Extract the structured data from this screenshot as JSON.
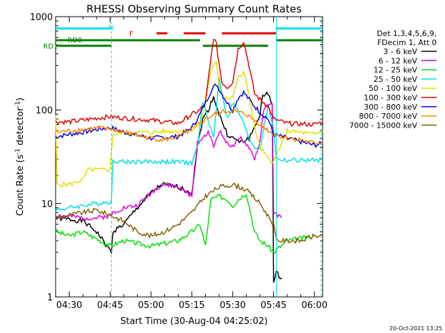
{
  "chart_data": {
    "type": "line",
    "title": "RHESSI Observing Summary Count Rates",
    "xlabel": "Start Time (30-Aug-04 04:25:02)",
    "ylabel_main": "Count Rate (s",
    "ylabel_sup1": "-1",
    "ylabel_mid": " detector",
    "ylabel_sup2": "-1",
    "ylabel_end": ")",
    "y_scale": "log",
    "ylim": [
      1,
      1000
    ],
    "xlim_minutes": [
      265,
      363
    ],
    "x_ticks": [
      {
        "label": "04:30",
        "minute": 270
      },
      {
        "label": "04:45",
        "minute": 285
      },
      {
        "label": "05:00",
        "minute": 300
      },
      {
        "label": "05:15",
        "minute": 315
      },
      {
        "label": "05:30",
        "minute": 330
      },
      {
        "label": "05:45",
        "minute": 345
      },
      {
        "label": "06:00",
        "minute": 360
      }
    ],
    "y_ticks": [
      {
        "label": "1",
        "value": 1
      },
      {
        "label": "10",
        "value": 10
      },
      {
        "label": "100",
        "value": 100
      },
      {
        "label": "1000",
        "value": 1000
      }
    ],
    "legend_header": [
      "Det 1,3,4,5,6,9,",
      "FDecim 1, Att 0"
    ],
    "series": [
      {
        "name": "3 - 6 keV",
        "color": "#000000",
        "x": [
          265,
          275,
          280,
          285.5,
          286,
          290,
          295,
          300,
          304,
          310,
          315,
          317,
          319,
          321,
          323,
          325,
          328,
          330,
          333,
          336,
          338,
          340,
          341,
          343,
          344.5,
          345,
          346,
          348
        ],
        "y": [
          7,
          6.5,
          5,
          3,
          5,
          6,
          9,
          13,
          16,
          15,
          13,
          40,
          80,
          100,
          140,
          90,
          55,
          50,
          45,
          50,
          65,
          90,
          140,
          150,
          120,
          1.4,
          1.8,
          1.6
        ]
      },
      {
        "name": "6 - 12 keV",
        "color": "#e000e0",
        "x": [
          265,
          275,
          280,
          285.5,
          286,
          290,
          295,
          300,
          304,
          310,
          315,
          317,
          319,
          321,
          323,
          325,
          328,
          330,
          333,
          336,
          338,
          340,
          341,
          343,
          344.5,
          345,
          348
        ],
        "y": [
          7.5,
          7,
          7,
          7.5,
          8,
          9,
          9.5,
          13,
          16,
          15,
          12,
          45,
          50,
          60,
          40,
          60,
          45,
          40,
          50,
          40,
          30,
          45,
          90,
          120,
          110,
          8,
          7
        ]
      },
      {
        "name": "12 - 25 keV",
        "color": "#00e000",
        "x": [
          265,
          270,
          275,
          285,
          290,
          300,
          310,
          315,
          318,
          320,
          322,
          325,
          328,
          330,
          332,
          335,
          338,
          340,
          343,
          345,
          350,
          360
        ],
        "y": [
          5,
          4.5,
          5,
          3.5,
          4,
          3.5,
          4,
          5,
          6,
          3.5,
          11,
          12,
          11,
          9.5,
          11,
          13,
          5,
          4,
          3.5,
          3,
          4,
          4.5
        ]
      },
      {
        "name": "25 - 50 keV",
        "color": "#00e0e0",
        "x": [
          265,
          270,
          275,
          280,
          285.5,
          286,
          290,
          300,
          310,
          315,
          317,
          319,
          321,
          323,
          325,
          328,
          330,
          333,
          336,
          338,
          340,
          343,
          345,
          346,
          350,
          360,
          363
        ],
        "y": [
          8.5,
          9,
          9.5,
          10,
          10.5,
          29,
          28,
          28,
          28,
          27,
          40,
          120,
          80,
          50,
          220,
          80,
          120,
          85,
          50,
          40,
          40,
          110,
          65,
          30,
          29,
          29,
          29
        ]
      },
      {
        "name": "50 - 100 keV",
        "color": "#e0e000",
        "x": [
          265,
          265.5,
          270,
          275,
          277,
          285,
          286,
          290,
          300,
          310,
          315,
          318,
          320,
          322,
          324,
          325,
          326,
          328,
          330,
          332,
          334,
          336,
          338,
          340,
          343,
          345,
          350,
          360,
          363
        ],
        "y": [
          85,
          16,
          16,
          18,
          23,
          23,
          55,
          57,
          58,
          60,
          62,
          70,
          120,
          270,
          320,
          180,
          150,
          135,
          140,
          220,
          250,
          150,
          65,
          40,
          30,
          28,
          60,
          55,
          60
        ]
      },
      {
        "name": "100 - 300 keV",
        "color": "#e00000",
        "x": [
          265,
          270,
          275,
          280,
          285,
          290,
          300,
          310,
          315,
          318,
          320,
          322,
          323,
          324,
          326,
          328,
          330,
          332,
          334,
          336,
          338,
          340,
          343,
          345,
          350,
          360,
          363
        ],
        "y": [
          75,
          75,
          78,
          82,
          85,
          82,
          78,
          72,
          90,
          100,
          120,
          350,
          600,
          500,
          200,
          175,
          200,
          450,
          550,
          300,
          150,
          130,
          110,
          80,
          72,
          70,
          75
        ]
      },
      {
        "name": "300 - 800 keV",
        "color": "#0000e0",
        "x": [
          265,
          270,
          275,
          280,
          285,
          290,
          300,
          310,
          315,
          318,
          320,
          322,
          324,
          326,
          328,
          330,
          332,
          334,
          336,
          338,
          340,
          343,
          345,
          350,
          360,
          363
        ],
        "y": [
          52,
          55,
          58,
          62,
          65,
          58,
          50,
          52,
          65,
          90,
          120,
          160,
          190,
          150,
          120,
          100,
          135,
          155,
          130,
          110,
          95,
          80,
          55,
          50,
          42,
          44
        ]
      },
      {
        "name": "800 - 7000 keV",
        "color": "#ff8000",
        "x": [
          265,
          270,
          275,
          280,
          285,
          290,
          300,
          305,
          310,
          315,
          320,
          325,
          330,
          335,
          340,
          345,
          350,
          355,
          360,
          363
        ],
        "y": [
          58,
          60,
          62,
          64,
          63,
          58,
          50,
          48,
          52,
          62,
          80,
          95,
          98,
          90,
          70,
          55,
          50,
          48,
          44,
          45
        ]
      },
      {
        "name": "7000 - 15000 keV",
        "color": "#806000",
        "x": [
          265,
          270,
          275,
          280,
          285,
          290,
          295,
          300,
          305,
          310,
          315,
          320,
          325,
          330,
          335,
          340,
          345,
          346,
          350,
          355,
          360,
          363
        ],
        "y": [
          7,
          7.5,
          8,
          8.5,
          7.5,
          6.5,
          5,
          4.5,
          5,
          6,
          8,
          12,
          15,
          16,
          14,
          10,
          6,
          4,
          4,
          4,
          4.5,
          4.5
        ]
      }
    ],
    "annotation_labels": {
      "N": "N",
      "F": "F",
      "RD0": "RD0",
      "RD1": "RD1",
      "bottom_right": "20-Oct-2021 13:25"
    },
    "status_bars": {
      "night_color": "#00e0e0",
      "night_segments_minutes": [
        [
          265,
          285.5
        ],
        [
          346,
          363
        ]
      ],
      "flare_color": "#e00000",
      "flare_segments_minutes": [
        [
          302,
          306
        ],
        [
          312,
          320
        ],
        [
          326,
          346
        ]
      ],
      "saa_color": "#008000",
      "rd0_segments_minutes": [
        [
          265,
          285.5
        ],
        [
          285.5,
          318
        ],
        [
          346,
          363
        ]
      ],
      "rd1_segments_minutes": [
        [
          265,
          285.5
        ],
        [
          319,
          343
        ]
      ]
    }
  }
}
